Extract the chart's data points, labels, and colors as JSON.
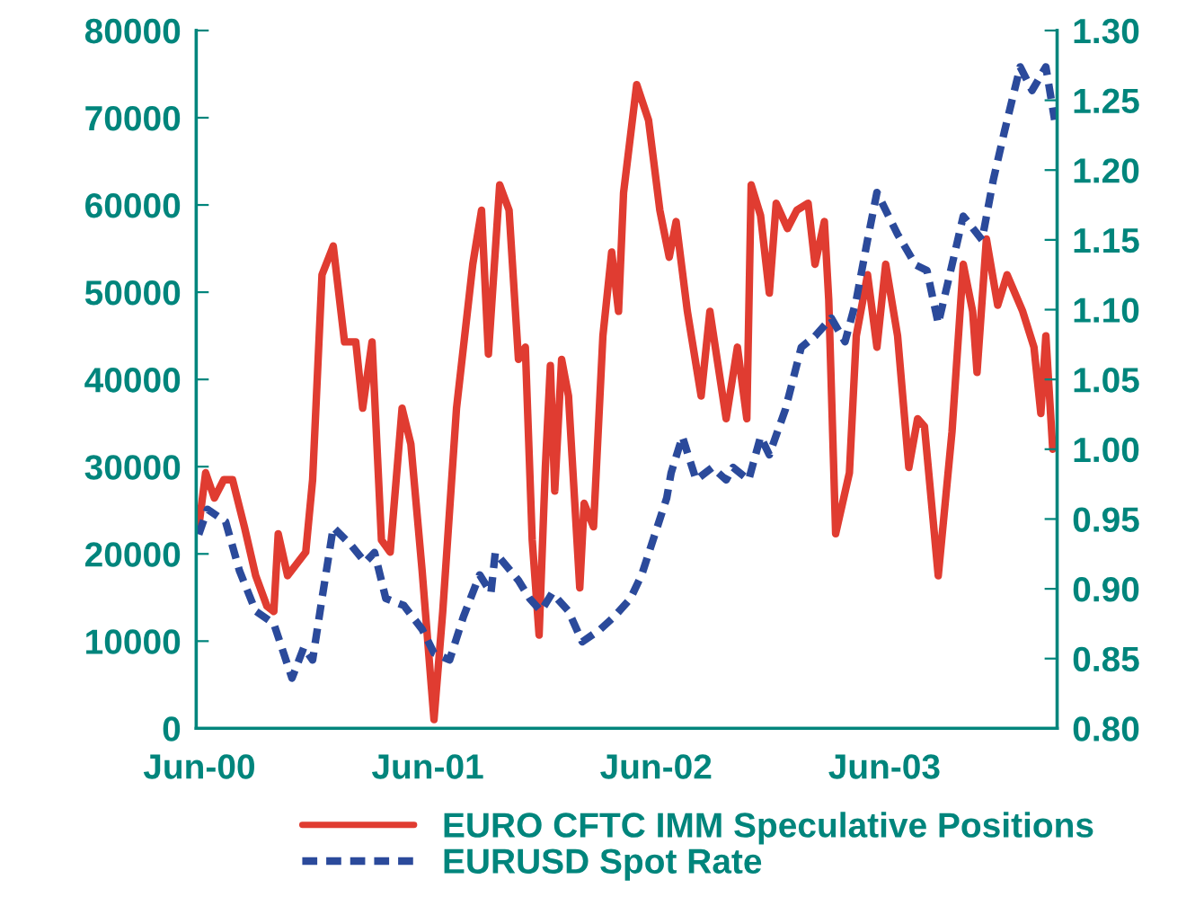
{
  "chart_data": {
    "type": "line",
    "xlim": [
      "2000-05-27",
      "2004-03-03"
    ],
    "xticks": [
      {
        "value": "2000-06-01",
        "label": "Jun-00"
      },
      {
        "value": "2001-06-01",
        "label": "Jun-01"
      },
      {
        "value": "2002-06-01",
        "label": "Jun-02"
      },
      {
        "value": "2003-06-01",
        "label": "Jun-03"
      }
    ],
    "ylim": [
      0,
      80000
    ],
    "yticks": [
      0,
      10000,
      20000,
      30000,
      40000,
      50000,
      60000,
      70000,
      80000
    ],
    "y2lim": [
      0.8,
      1.3
    ],
    "y2ticks": [
      {
        "value": 0.8,
        "label": "0.80"
      },
      {
        "value": 0.85,
        "label": "0.85"
      },
      {
        "value": 0.9,
        "label": "0.90"
      },
      {
        "value": 0.95,
        "label": "0.95"
      },
      {
        "value": 1.0,
        "label": "1.00"
      },
      {
        "value": 1.05,
        "label": "1.05"
      },
      {
        "value": 1.1,
        "label": "1.10"
      },
      {
        "value": 1.15,
        "label": "1.15"
      },
      {
        "value": 1.2,
        "label": "1.20"
      },
      {
        "value": 1.25,
        "label": "1.25"
      },
      {
        "value": 1.3,
        "label": "1.30"
      }
    ],
    "grid": false,
    "legend": "bottom",
    "series": [
      {
        "name": "EURO CFTC IMM Speculative Positions",
        "color": "#e03c31",
        "line_style": "solid",
        "x": [
          "2000-05-31",
          "2000-06-11",
          "2000-06-25",
          "2000-07-10",
          "2000-07-24",
          "2000-08-12",
          "2000-08-30",
          "2000-09-17",
          "2000-09-28",
          "2000-10-05",
          "2000-10-20",
          "2000-11-18",
          "2000-11-29",
          "2000-12-14",
          "2001-01-01",
          "2001-01-19",
          "2001-02-06",
          "2001-02-17",
          "2001-03-04",
          "2001-03-19",
          "2001-04-02",
          "2001-04-21",
          "2001-05-05",
          "2001-05-23",
          "2001-06-11",
          "2001-06-25",
          "2001-07-17",
          "2001-08-12",
          "2001-08-26",
          "2001-09-06",
          "2001-09-24",
          "2001-10-09",
          "2001-10-24",
          "2001-11-04",
          "2001-11-15",
          "2001-11-26",
          "2001-12-06",
          "2001-12-14",
          "2001-12-21",
          "2002-01-01",
          "2002-01-12",
          "2002-01-30",
          "2002-02-06",
          "2002-02-21",
          "2002-03-08",
          "2002-03-22",
          "2002-04-02",
          "2002-04-10",
          "2002-05-01",
          "2002-05-20",
          "2002-06-07",
          "2002-06-22",
          "2002-07-03",
          "2002-07-21",
          "2002-08-12",
          "2002-08-26",
          "2002-09-21",
          "2002-10-09",
          "2002-10-24",
          "2002-10-31",
          "2002-11-15",
          "2002-11-29",
          "2002-12-10",
          "2002-12-28",
          "2003-01-12",
          "2003-01-30",
          "2003-02-10",
          "2003-02-25",
          "2003-03-04",
          "2003-03-15",
          "2003-04-06",
          "2003-04-17",
          "2003-05-05",
          "2003-05-20",
          "2003-06-03",
          "2003-06-22",
          "2003-07-10",
          "2003-07-24",
          "2003-08-04",
          "2003-08-26",
          "2003-09-17",
          "2003-10-05",
          "2003-10-20",
          "2003-10-27",
          "2003-11-11",
          "2003-11-29",
          "2003-12-14",
          "2004-01-08",
          "2004-01-26",
          "2004-02-06",
          "2004-02-14",
          "2004-02-25"
        ],
        "values": [
          23100,
          29300,
          26400,
          28500,
          28500,
          23100,
          17500,
          14000,
          13400,
          22300,
          17500,
          20200,
          28500,
          52000,
          55300,
          44300,
          44300,
          36700,
          44300,
          21600,
          20200,
          36700,
          32600,
          18100,
          1000,
          13400,
          36700,
          53200,
          59400,
          42900,
          62300,
          59400,
          42300,
          43700,
          21600,
          10700,
          29900,
          41600,
          27200,
          42300,
          38100,
          16100,
          25800,
          23100,
          45000,
          54600,
          47800,
          61400,
          73800,
          69700,
          59400,
          54000,
          58100,
          47800,
          38100,
          47800,
          35500,
          43700,
          35500,
          62300,
          58800,
          49900,
          60200,
          57300,
          59400,
          60200,
          53200,
          58100,
          49100,
          22300,
          29300,
          45000,
          52000,
          43700,
          53200,
          45000,
          29900,
          35500,
          34600,
          17500,
          34000,
          53200,
          47800,
          40800,
          56100,
          48500,
          52000,
          47800,
          43700,
          36100,
          45000,
          32000
        ]
      },
      {
        "name": "EURUSD Spot Rate",
        "color": "#2b4a9b",
        "line_style": "dashed",
        "axis": "y2",
        "x": [
          "2000-05-31",
          "2000-06-14",
          "2000-07-13",
          "2000-08-04",
          "2000-08-30",
          "2000-09-28",
          "2000-10-27",
          "2000-11-15",
          "2000-11-29",
          "2000-12-14",
          "2001-01-01",
          "2001-01-30",
          "2001-02-21",
          "2001-03-08",
          "2001-03-26",
          "2001-04-24",
          "2001-05-23",
          "2001-06-11",
          "2001-07-06",
          "2001-07-28",
          "2001-08-23",
          "2001-09-10",
          "2001-09-17",
          "2001-10-24",
          "2001-11-11",
          "2001-11-29",
          "2001-12-17",
          "2002-01-12",
          "2002-02-03",
          "2002-03-04",
          "2002-03-26",
          "2002-04-21",
          "2002-05-09",
          "2002-06-18",
          "2002-06-25",
          "2002-07-13",
          "2002-08-04",
          "2002-08-30",
          "2002-09-21",
          "2002-10-02",
          "2002-10-27",
          "2002-11-15",
          "2002-11-29",
          "2002-12-25",
          "2003-01-19",
          "2003-02-10",
          "2003-03-08",
          "2003-03-30",
          "2003-04-17",
          "2003-05-05",
          "2003-05-20",
          "2003-06-22",
          "2003-07-21",
          "2003-08-08",
          "2003-08-26",
          "2003-09-17",
          "2003-10-05",
          "2003-11-04",
          "2003-11-22",
          "2003-12-10",
          "2004-01-04",
          "2004-01-23",
          "2004-02-14",
          "2004-02-28"
        ],
        "values": [
          0.939,
          0.957,
          0.948,
          0.913,
          0.884,
          0.875,
          0.836,
          0.858,
          0.849,
          0.893,
          0.944,
          0.931,
          0.919,
          0.926,
          0.893,
          0.888,
          0.871,
          0.854,
          0.849,
          0.88,
          0.91,
          0.897,
          0.926,
          0.906,
          0.893,
          0.884,
          0.897,
          0.884,
          0.862,
          0.871,
          0.88,
          0.893,
          0.91,
          0.965,
          0.983,
          1.009,
          0.978,
          0.987,
          0.978,
          0.987,
          0.978,
          1.009,
          0.996,
          1.029,
          1.073,
          1.081,
          1.094,
          1.077,
          1.107,
          1.15,
          1.184,
          1.154,
          1.132,
          1.128,
          1.09,
          1.132,
          1.167,
          1.15,
          1.193,
          1.228,
          1.274,
          1.257,
          1.274,
          1.236
        ]
      }
    ]
  }
}
